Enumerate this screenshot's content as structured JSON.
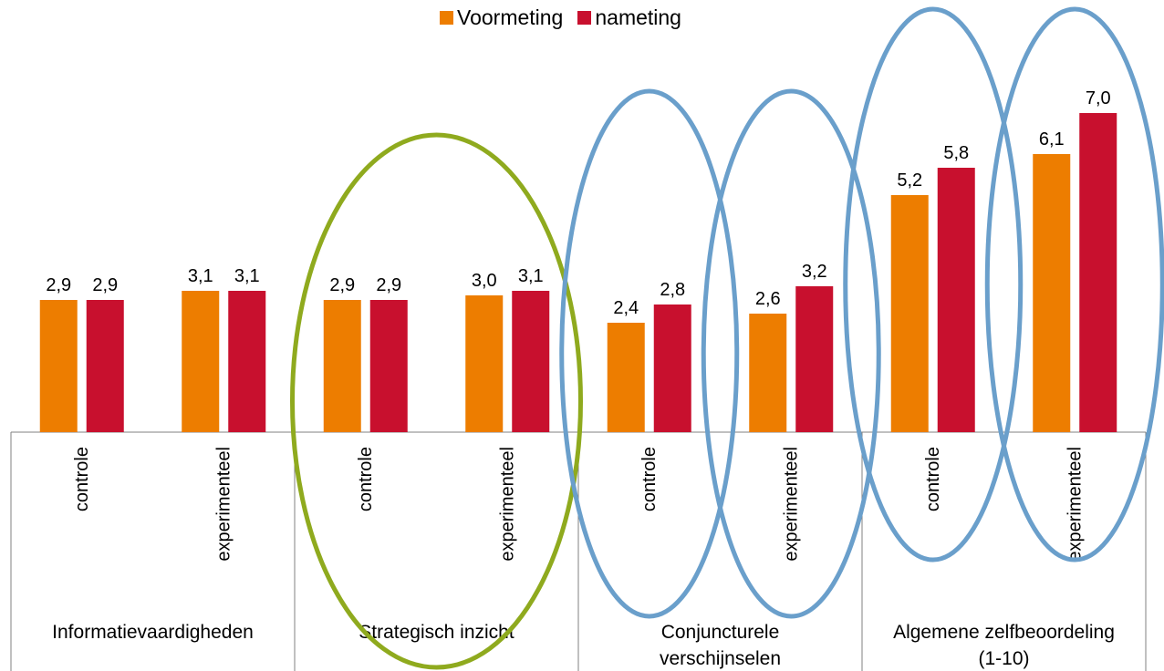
{
  "chart_data": {
    "type": "bar",
    "legend_position": "top-center",
    "grid": false,
    "ylim": [
      0,
      10
    ],
    "groups": [
      {
        "label": "Informatievaardigheden",
        "subcategories": [
          "controle",
          "experimenteel"
        ]
      },
      {
        "label": "Strategisch inzicht",
        "subcategories": [
          "controle",
          "experimenteel"
        ]
      },
      {
        "label": "Conjuncturele verschijnselen",
        "subcategories": [
          "controle",
          "experimenteel"
        ]
      },
      {
        "label": "Algemene zelfbeoordeling (1-10)",
        "subcategories": [
          "controle",
          "experimenteel"
        ]
      }
    ],
    "series": [
      {
        "name": "Voormeting",
        "color": "#ED7D00",
        "values": [
          2.9,
          3.1,
          2.9,
          3.0,
          2.4,
          2.6,
          5.2,
          6.1
        ],
        "labels": [
          "2,9",
          "3,1",
          "2,9",
          "3,0",
          "2,4",
          "2,6",
          "5,2",
          "6,1"
        ]
      },
      {
        "name": "nameting",
        "color": "#C8102E",
        "values": [
          2.9,
          3.1,
          2.9,
          3.1,
          2.8,
          3.2,
          5.8,
          7.0
        ],
        "labels": [
          "2,9",
          "3,1",
          "2,9",
          "3,1",
          "2,8",
          "3,2",
          "5,8",
          "7,0"
        ]
      }
    ],
    "highlights": [
      {
        "group": "Strategisch inzicht",
        "color": "#8FAA1E"
      },
      {
        "group": "Conjuncturele verschijnselen",
        "subcategory": "controle",
        "color": "#6A9FCB"
      },
      {
        "group": "Conjuncturele verschijnselen",
        "subcategory": "experimenteel",
        "color": "#6A9FCB"
      },
      {
        "group": "Algemene zelfbeoordeling (1-10)",
        "subcategory": "controle",
        "color": "#6A9FCB"
      },
      {
        "group": "Algemene zelfbeoordeling (1-10)",
        "subcategory": "experimenteel",
        "color": "#6A9FCB"
      }
    ]
  }
}
